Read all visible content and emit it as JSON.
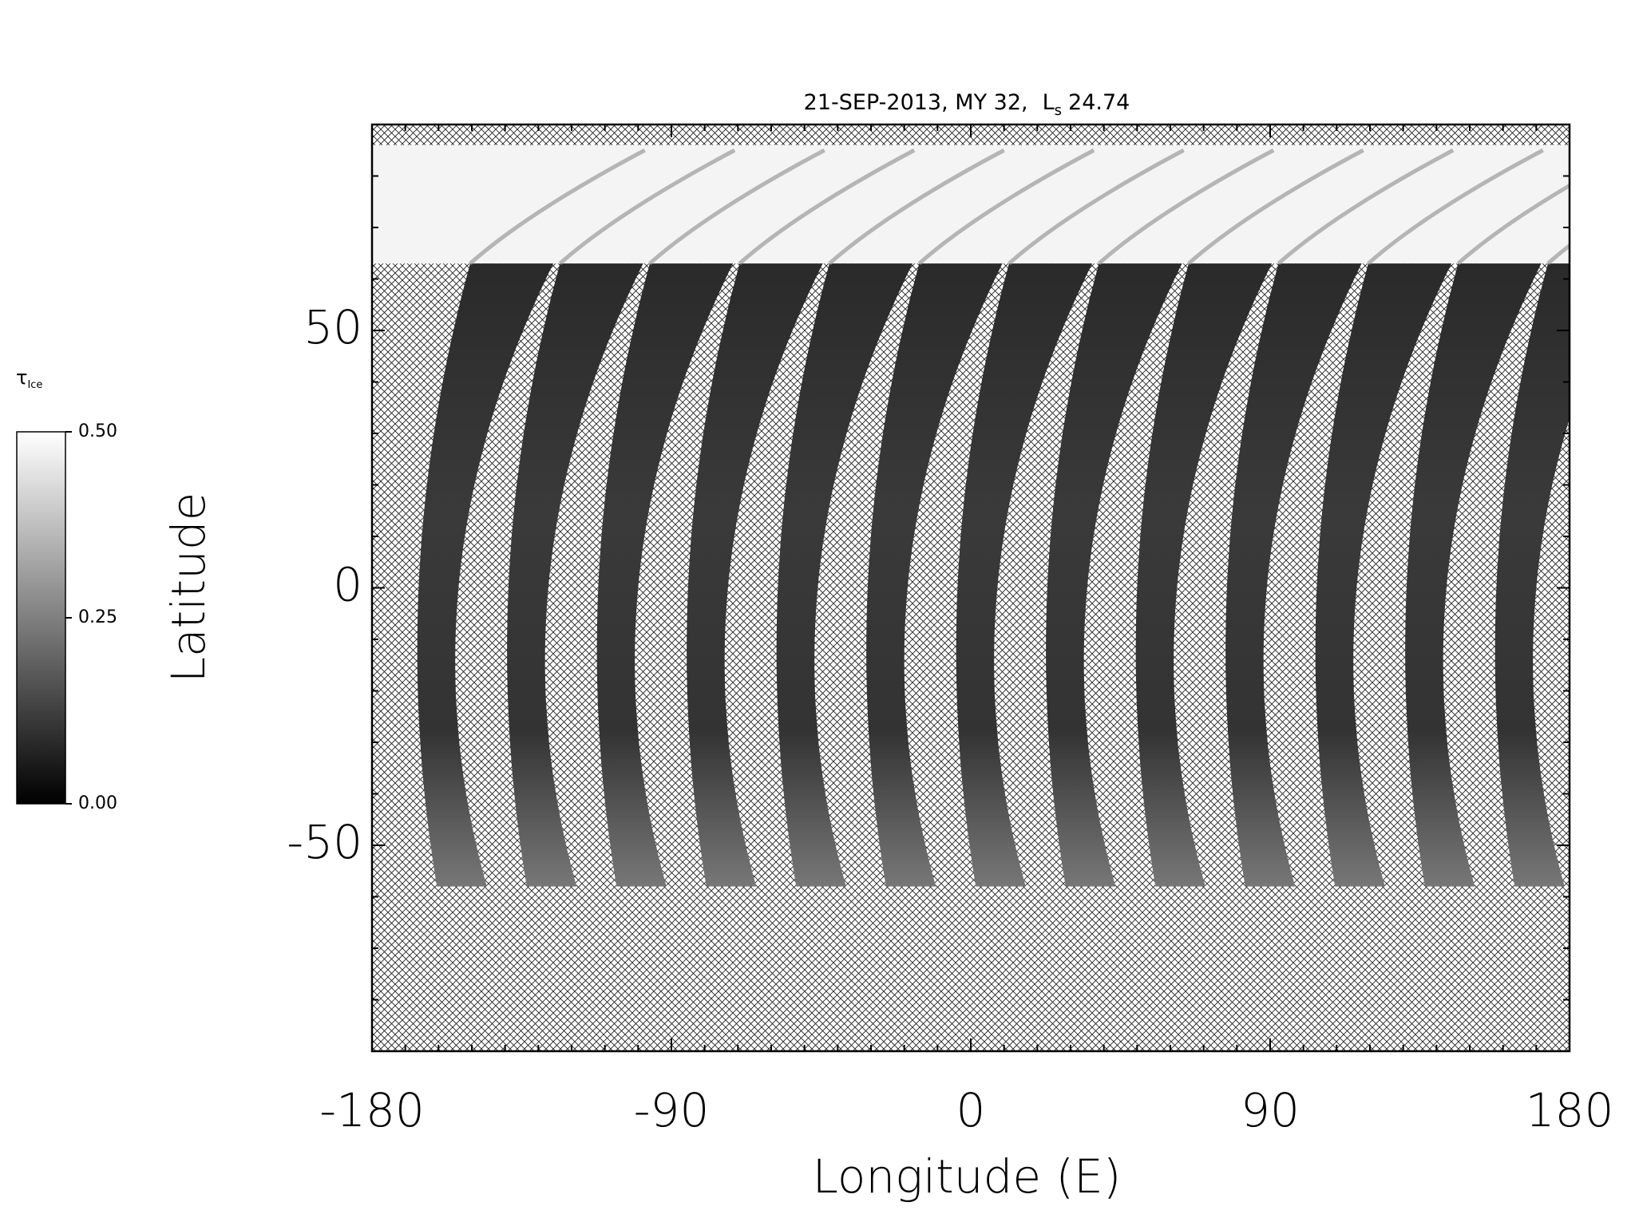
{
  "chart_data": {
    "type": "map",
    "title": {
      "text": "21-SEP-2013, MY 32,",
      "ls_symbol": "L",
      "ls_subscript": "s",
      "ls_value": 24.74
    },
    "x_label": "Longitude (E)",
    "y_label": "Latitude",
    "xlim": [
      -180,
      180
    ],
    "ylim": [
      -90,
      90
    ],
    "xticks": [
      -180,
      -90,
      0,
      90,
      180
    ],
    "yticks": [
      -50,
      0,
      50
    ],
    "x_minor_ticks": [
      -170,
      -160,
      -150,
      -140,
      -130,
      -120,
      -110,
      -100,
      -80,
      -70,
      -60,
      -50,
      -40,
      -30,
      -20,
      -10,
      10,
      20,
      30,
      40,
      50,
      60,
      70,
      80,
      100,
      110,
      120,
      130,
      140,
      150,
      160,
      170
    ],
    "y_minor_ticks": [
      -80,
      -70,
      -60,
      -40,
      -30,
      -20,
      -10,
      10,
      20,
      30,
      40,
      60,
      70,
      80
    ],
    "swath_longitudes_at_equator": [
      -160,
      -133,
      -106,
      -79,
      -52,
      -25,
      2,
      29,
      56,
      83,
      110,
      137,
      164
    ],
    "swath_lat_range": [
      -58,
      63
    ],
    "polar_cap_lat_range": [
      63,
      86
    ],
    "colorbar": {
      "symbol": "τ",
      "subscript": "Ice",
      "lim": [
        0,
        0.5
      ],
      "ticks": [
        {
          "value": 0,
          "label": "0.00"
        },
        {
          "value": 0.25,
          "label": "0.25"
        },
        {
          "value": 0.5,
          "label": "0.50"
        }
      ]
    }
  }
}
